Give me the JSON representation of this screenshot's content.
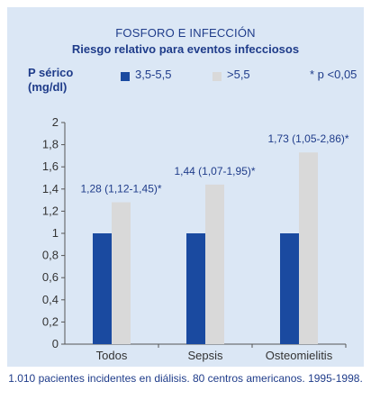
{
  "chart_data": {
    "type": "bar",
    "title": "FOSFORO E INFECCIÓN",
    "subtitle": "Riesgo relativo para eventos infecciosos",
    "ylabel": [
      "P sérico",
      "(mg/dl)"
    ],
    "categories": [
      "Todos",
      "Sepsis",
      "Osteomielitis"
    ],
    "series": [
      {
        "name": "3,5-5,5",
        "values": [
          1,
          1,
          1
        ],
        "color": "#1a4aa0"
      },
      {
        "name": ">5,5",
        "values": [
          1.28,
          1.44,
          1.73
        ],
        "color": "#d9d9d9"
      }
    ],
    "data_labels": [
      "1,28 (1,12-1,45)*",
      "1,44 (1,07-1,95)*",
      "1,73 (1,05-2,86)*"
    ],
    "significance_note": "* p <0,05",
    "ylim": [
      0,
      2
    ],
    "yticks": [
      "0",
      "0,2",
      "0,4",
      "0,6",
      "0,8",
      "1",
      "1,2",
      "1,4",
      "1,6",
      "1,8",
      "2"
    ],
    "source_note": "1.010 pacientes incidentes en diálisis. 80 centros americanos. 1995-1998.",
    "legend_position": "top",
    "grid": false
  },
  "colors": {
    "background": "#dbe7f5",
    "text": "#1f3c8a"
  }
}
